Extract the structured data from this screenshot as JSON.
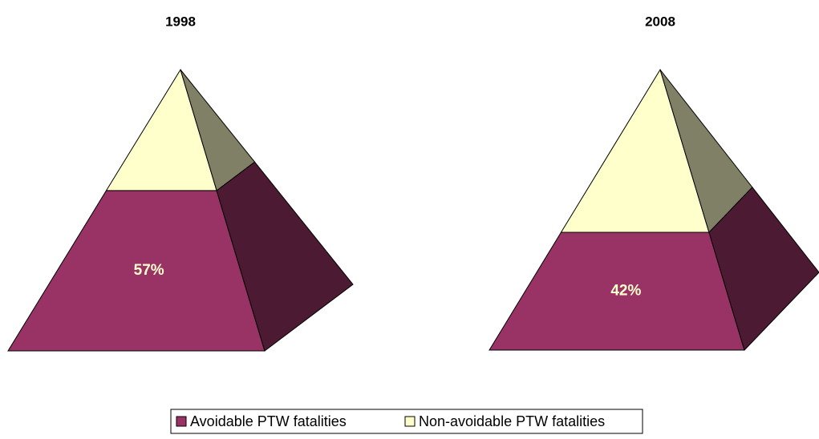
{
  "chart_data": {
    "type": "pyramid",
    "categories": [
      "1998",
      "2008"
    ],
    "series": [
      {
        "name": "Avoidable PTW fatalities",
        "color": "#993366",
        "values": [
          57,
          42
        ],
        "value_labels": [
          "57%",
          "42%"
        ]
      },
      {
        "name": "Non-avoidable PTW fatalities",
        "color": "#ffffcc",
        "values": [
          43,
          58
        ]
      }
    ],
    "legend": "bottom"
  }
}
